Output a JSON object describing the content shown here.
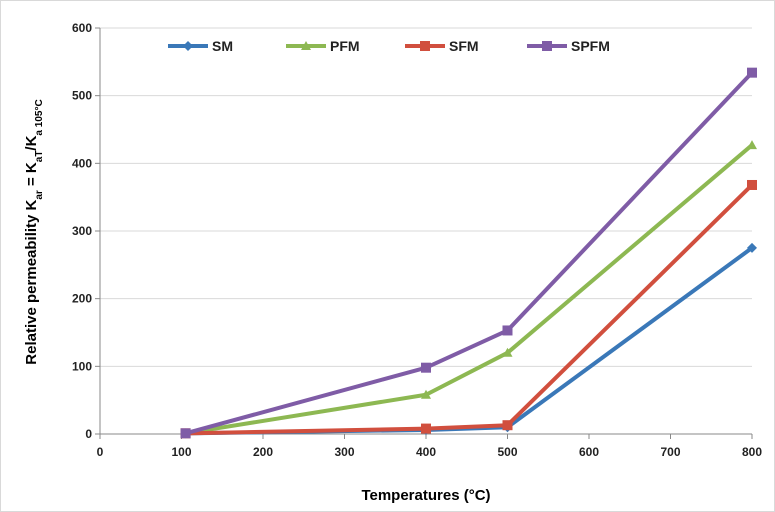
{
  "chart_data": {
    "type": "line",
    "title": "",
    "xlabel": "Temperatures (°C)",
    "ylabel": {
      "prefix": "Relative permeability K",
      "sub1": "ar",
      "mid": " = K",
      "sub2": "aT",
      "slash": "/K",
      "sub3": "a 105°C"
    },
    "xlim": [
      0,
      800
    ],
    "ylim": [
      0,
      600
    ],
    "x_ticks": [
      "0",
      "100",
      "200",
      "300",
      "400",
      "500",
      "600",
      "700",
      "800"
    ],
    "y_ticks": [
      "0",
      "100",
      "200",
      "300",
      "400",
      "500",
      "600"
    ],
    "grid": "horizontal",
    "legend_position": "top",
    "x": [
      105,
      400,
      500,
      800
    ],
    "series": [
      {
        "name": "SM",
        "color": "#3A78B8",
        "marker": "diamond",
        "values": [
          1,
          6,
          10,
          275
        ]
      },
      {
        "name": "PFM",
        "color": "#8DB852",
        "marker": "triangle",
        "values": [
          1,
          58,
          120,
          427
        ]
      },
      {
        "name": "SFM",
        "color": "#D14F3E",
        "marker": "square",
        "values": [
          1,
          8,
          13,
          368
        ]
      },
      {
        "name": "SPFM",
        "color": "#7F5CA6",
        "marker": "square",
        "values": [
          1,
          98,
          153,
          534
        ]
      }
    ]
  }
}
